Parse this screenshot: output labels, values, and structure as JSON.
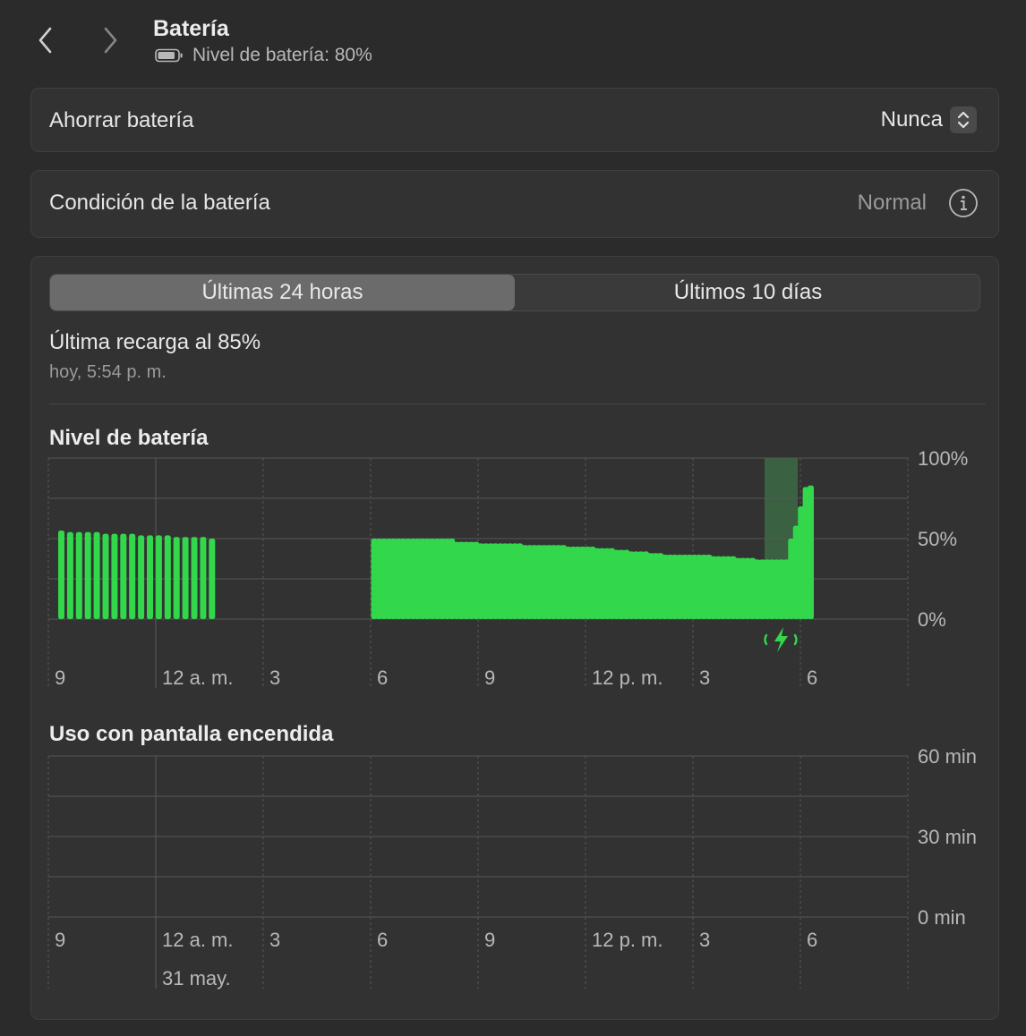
{
  "header": {
    "title": "Batería",
    "subtitle": "Nivel de batería: 80%"
  },
  "settings": {
    "low_power_label": "Ahorrar batería",
    "low_power_value": "Nunca",
    "health_label": "Condición de la batería",
    "health_value": "Normal"
  },
  "tabs": [
    {
      "label": "Últimas 24 horas",
      "active": true
    },
    {
      "label": "Últimos 10 días",
      "active": false
    }
  ],
  "last_charge": {
    "title": "Última recarga al 85%",
    "time": "hoy, 5:54 p. m."
  },
  "colors": {
    "bar": "#32d74b",
    "charging_bg": "#3c6b45",
    "grid": "#555555"
  },
  "chart_data": [
    {
      "type": "bar",
      "title": "Nivel de batería",
      "ylim": [
        0,
        100
      ],
      "y_ticks": [
        "100%",
        "50%",
        "0%"
      ],
      "x_ticks": [
        "9",
        "12 a. m.",
        "3",
        "6",
        "9",
        "12 p. m.",
        "3",
        "6"
      ],
      "grid": true,
      "values": [
        55,
        54,
        54,
        54,
        54,
        53,
        53,
        53,
        53,
        52,
        52,
        52,
        52,
        51,
        51,
        51,
        51,
        50,
        50,
        50,
        50,
        50,
        50,
        50,
        50,
        50,
        50,
        50,
        50,
        50,
        50,
        50,
        50,
        50,
        50,
        48,
        48,
        48,
        48,
        48,
        47,
        47,
        47,
        47,
        47,
        47,
        47,
        47,
        47,
        46,
        46,
        46,
        46,
        46,
        46,
        46,
        46,
        46,
        45,
        45,
        45,
        45,
        45,
        45,
        44,
        44,
        44,
        44,
        43,
        43,
        43,
        42,
        42,
        42,
        42,
        41,
        41,
        41,
        40,
        40,
        40,
        40,
        40,
        40,
        40,
        40,
        40,
        40,
        39,
        39,
        39,
        39,
        39,
        38,
        38,
        38,
        38,
        37,
        37,
        37,
        37,
        37,
        37,
        37,
        50,
        58,
        70,
        82,
        83
      ],
      "charging_period": "5 p. m. – 6 p. m."
    },
    {
      "type": "bar",
      "title": "Uso con pantalla encendida",
      "ylim": [
        0,
        60
      ],
      "y_ticks": [
        "60 min",
        "30 min",
        "0 min"
      ],
      "x_ticks": [
        "9",
        "12 a. m.",
        "3",
        "6",
        "9",
        "12 p. m.",
        "3",
        "6"
      ],
      "date_label": "31 may.",
      "grid": true,
      "values": []
    }
  ]
}
